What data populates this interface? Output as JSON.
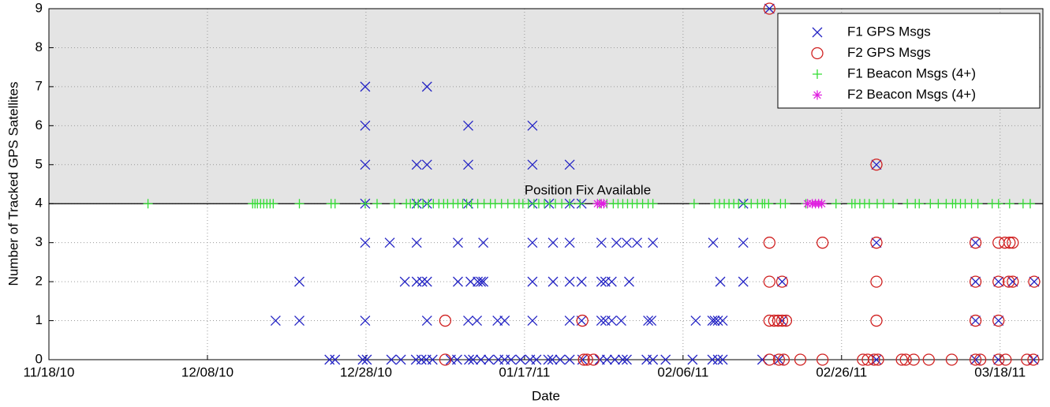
{
  "chart_data": {
    "type": "scatter",
    "x_label": "Date",
    "y_label": "Number of Tracked GPS Satellites",
    "xlim": [
      0,
      125.4
    ],
    "ylim": [
      0,
      9
    ],
    "xticks": [
      {
        "value": 0,
        "label": "11/18/10"
      },
      {
        "value": 20,
        "label": "12/08/10"
      },
      {
        "value": 40,
        "label": "12/28/10"
      },
      {
        "value": 60,
        "label": "01/17/11"
      },
      {
        "value": 80,
        "label": "02/06/11"
      },
      {
        "value": 100,
        "label": "02/26/11"
      },
      {
        "value": 120,
        "label": "03/18/11"
      }
    ],
    "yticks": [
      0,
      1,
      2,
      3,
      4,
      5,
      6,
      7,
      8,
      9
    ],
    "grid": true,
    "legend": "upper right",
    "annotations": [
      {
        "text": "Position Fix Available",
        "y": 4
      }
    ],
    "series": [
      {
        "name": "F1 GPS Msgs",
        "color": "#2424c4",
        "marker": "x",
        "x": [
          39.9,
          47.7,
          39.9,
          52.9,
          61.0,
          39.9,
          46.4,
          47.7,
          52.9,
          61.0,
          65.7,
          104.4,
          39.9,
          46.4,
          47.7,
          52.9,
          61.0,
          63.1,
          65.7,
          67.2,
          87.6,
          90.9,
          39.9,
          43.0,
          46.4,
          51.6,
          54.8,
          61.0,
          63.6,
          65.7,
          69.7,
          71.6,
          72.9,
          74.2,
          76.2,
          83.8,
          87.6,
          104.4,
          116.9,
          31.6,
          44.9,
          46.4,
          47.1,
          47.7,
          51.6,
          53.2,
          54.1,
          54.5,
          54.8,
          61.0,
          63.6,
          65.7,
          67.2,
          69.7,
          70.2,
          71.0,
          73.2,
          84.7,
          87.6,
          92.5,
          116.9,
          119.8,
          121.6,
          124.3,
          28.6,
          31.6,
          39.9,
          47.7,
          52.9,
          54.0,
          56.6,
          57.5,
          61.0,
          65.7,
          67.2,
          69.7,
          70.2,
          71.0,
          72.2,
          75.6,
          76.0,
          81.6,
          83.7,
          84.0,
          84.4,
          85.0,
          92.5,
          116.9,
          119.8,
          35.4,
          36.1,
          39.6,
          40.1,
          43.2,
          44.4,
          46.3,
          47.0,
          47.6,
          48.4,
          50.7,
          51.5,
          53.0,
          53.5,
          54.5,
          55.5,
          56.7,
          57.5,
          58.3,
          59.5,
          60.7,
          61.5,
          63.0,
          63.5,
          64.5,
          65.7,
          67.3,
          69.5,
          70.4,
          71.4,
          72.4,
          72.9,
          75.4,
          76.2,
          77.8,
          81.2,
          83.7,
          84.4,
          85.0,
          90.0,
          92.1,
          104.4,
          116.9,
          119.8,
          124.2
        ],
        "values": [
          7,
          7,
          6,
          6,
          6,
          5,
          5,
          5,
          5,
          5,
          5,
          5,
          4,
          4,
          4,
          4,
          4,
          4,
          4,
          4,
          4,
          9,
          3,
          3,
          3,
          3,
          3,
          3,
          3,
          3,
          3,
          3,
          3,
          3,
          3,
          3,
          3,
          3,
          3,
          2,
          2,
          2,
          2,
          2,
          2,
          2,
          2,
          2,
          2,
          2,
          2,
          2,
          2,
          2,
          2,
          2,
          2,
          2,
          2,
          2,
          2,
          2,
          2,
          2,
          1,
          1,
          1,
          1,
          1,
          1,
          1,
          1,
          1,
          1,
          1,
          1,
          1,
          1,
          1,
          1,
          1,
          1,
          1,
          1,
          1,
          1,
          1,
          1,
          1,
          0,
          0,
          0,
          0,
          0,
          0,
          0,
          0,
          0,
          0,
          0,
          0,
          0,
          0,
          0,
          0,
          0,
          0,
          0,
          0,
          0,
          0,
          0,
          0,
          0,
          0,
          0,
          0,
          0,
          0,
          0,
          0,
          0,
          0,
          0,
          0,
          0,
          0,
          0,
          0,
          0,
          0,
          0,
          0,
          0
        ]
      },
      {
        "name": "F2 GPS Msgs",
        "color": "#d02020",
        "marker": "o",
        "x": [
          90.9,
          104.4,
          90.9,
          97.6,
          104.4,
          116.9,
          119.8,
          120.6,
          121.2,
          121.6,
          90.9,
          92.5,
          104.4,
          116.9,
          119.8,
          121.1,
          121.6,
          124.3,
          50.0,
          67.3,
          90.9,
          91.5,
          92.0,
          92.5,
          93.0,
          104.4,
          116.9,
          119.8,
          50.0,
          67.5,
          67.9,
          68.7,
          90.9,
          92.1,
          92.7,
          94.8,
          97.6,
          102.7,
          103.3,
          104.1,
          104.6,
          107.6,
          108.1,
          109.1,
          111.0,
          113.9,
          116.9,
          117.5,
          119.8,
          120.7,
          123.4,
          124.2
        ],
        "values": [
          9,
          5,
          3,
          3,
          3,
          3,
          3,
          3,
          3,
          3,
          2,
          2,
          2,
          2,
          2,
          2,
          2,
          2,
          1,
          1,
          1,
          1,
          1,
          1,
          1,
          1,
          1,
          1,
          0,
          0,
          0,
          0,
          0,
          0,
          0,
          0,
          0,
          0,
          0,
          0,
          0,
          0,
          0,
          0,
          0,
          0,
          0,
          0,
          0,
          0,
          0,
          0
        ]
      },
      {
        "name": "F1 Beacon Msgs (4+)",
        "color": "#33dd33",
        "marker": "+",
        "x": [
          12.5,
          25.7,
          26.0,
          26.3,
          26.7,
          27.1,
          27.5,
          27.9,
          28.3,
          31.6,
          35.6,
          36.1,
          39.9,
          41.4,
          43.6,
          45.1,
          45.6,
          46.1,
          46.6,
          47.2,
          47.9,
          48.5,
          49.2,
          49.8,
          50.3,
          51.0,
          51.6,
          52.2,
          52.7,
          53.3,
          54.1,
          54.9,
          55.7,
          56.3,
          57.1,
          57.9,
          58.7,
          59.3,
          59.8,
          60.5,
          61.2,
          61.8,
          62.5,
          63.2,
          63.9,
          64.7,
          65.7,
          67.0,
          69.5,
          70.4,
          71.2,
          71.8,
          72.4,
          73.0,
          73.6,
          74.2,
          74.9,
          75.6,
          76.2,
          81.4,
          84.0,
          84.6,
          85.2,
          85.8,
          86.4,
          87.0,
          87.8,
          88.6,
          89.4,
          90.0,
          90.3,
          90.8,
          92.3,
          92.9,
          95.5,
          99.3,
          101.3,
          101.7,
          102.3,
          102.9,
          103.5,
          104.5,
          105.3,
          106.5,
          108.3,
          109.3,
          109.8,
          111.2,
          112.2,
          113.2,
          114.0,
          114.4,
          115.0,
          115.6,
          116.4,
          117.2,
          119.0,
          119.8,
          121.2,
          122.9,
          123.8
        ],
        "values": [
          4,
          4,
          4,
          4,
          4,
          4,
          4,
          4,
          4,
          4,
          4,
          4,
          4,
          4,
          4,
          4,
          4,
          4,
          4,
          4,
          4,
          4,
          4,
          4,
          4,
          4,
          4,
          4,
          4,
          4,
          4,
          4,
          4,
          4,
          4,
          4,
          4,
          4,
          4,
          4,
          4,
          4,
          4,
          4,
          4,
          4,
          4,
          4,
          4,
          4,
          4,
          4,
          4,
          4,
          4,
          4,
          4,
          4,
          4,
          4,
          4,
          4,
          4,
          4,
          4,
          4,
          4,
          4,
          4,
          4,
          4,
          4,
          4,
          4,
          4,
          4,
          4,
          4,
          4,
          4,
          4,
          4,
          4,
          4,
          4,
          4,
          4,
          4,
          4,
          4,
          4,
          4,
          4,
          4,
          4,
          4,
          4,
          4,
          4,
          4,
          4
        ]
      },
      {
        "name": "F2 Beacon Msgs (4+)",
        "color": "#e020e0",
        "marker": "*",
        "x": [
          69.2,
          69.7,
          70.0,
          95.7,
          96.3,
          96.7,
          97.1,
          97.5
        ],
        "values": [
          4,
          4,
          4,
          4,
          4,
          4,
          4,
          4
        ]
      }
    ]
  }
}
